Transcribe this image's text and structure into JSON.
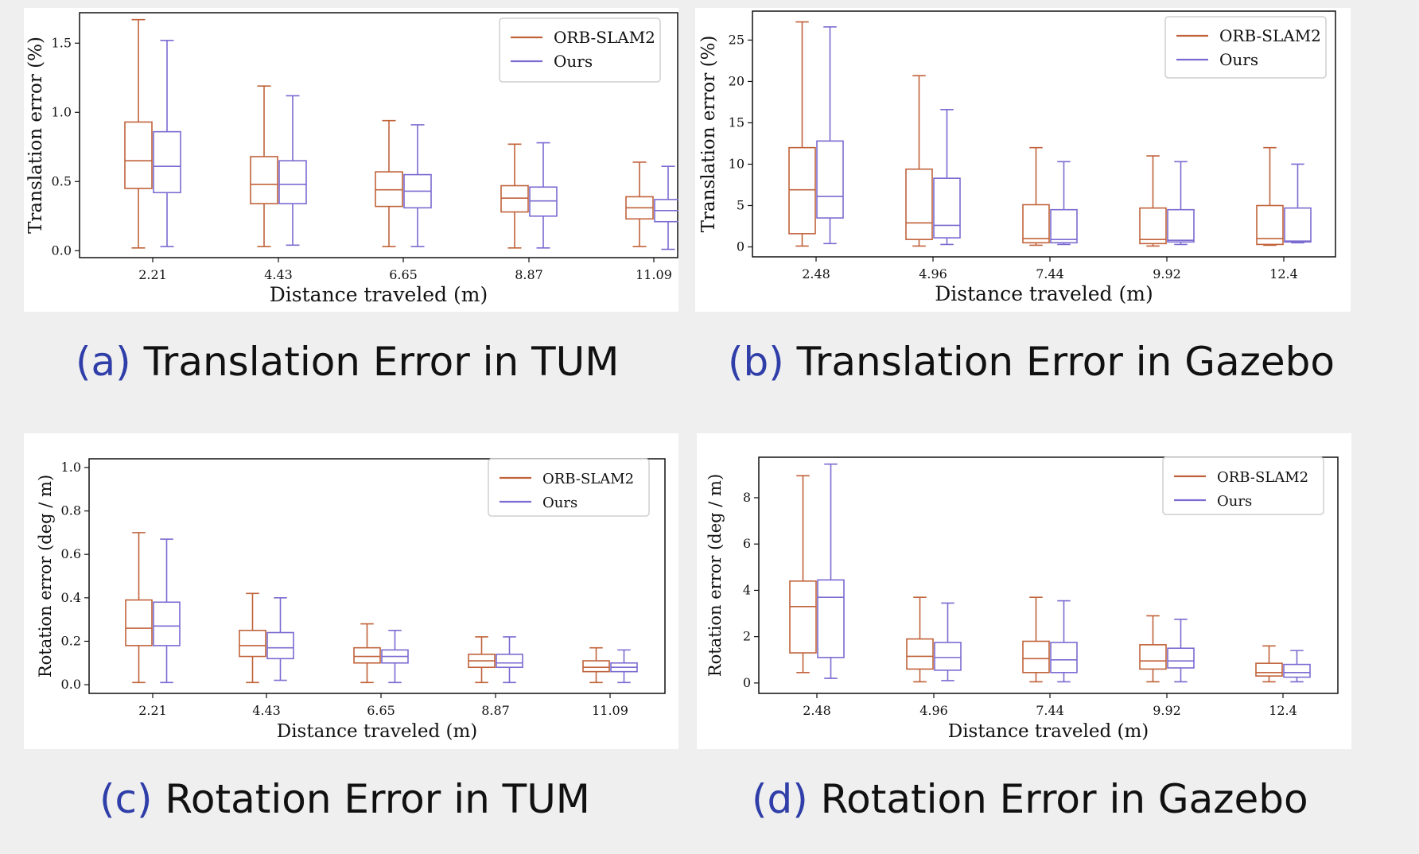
{
  "colors": {
    "orb": "#c0623a",
    "ours": "#7a6bd1",
    "caption_letter": "#2f3ea8"
  },
  "captions": [
    {
      "letter": "(a)",
      "text": "Translation Error in TUM"
    },
    {
      "letter": "(b)",
      "text": "Translation Error in Gazebo"
    },
    {
      "letter": "(c)",
      "text": "Rotation Error in TUM"
    },
    {
      "letter": "(d)",
      "text": "Rotation Error in Gazebo"
    }
  ],
  "chart_data": [
    {
      "type": "box",
      "xlabel": "Distance traveled (m)",
      "ylabel": "Translation error (%)",
      "ylim": [
        -0.05,
        1.72
      ],
      "yticks": [
        0.0,
        0.5,
        1.0,
        1.5
      ],
      "ytick_labels": [
        "0.0",
        "0.5",
        "1.0",
        "1.5"
      ],
      "legend": "top-right",
      "categories": [
        "2.21",
        "4.43",
        "6.65",
        "8.87",
        "11.09"
      ],
      "series": [
        {
          "name": "ORB-SLAM2",
          "boxes": [
            {
              "min": 0.02,
              "q1": 0.45,
              "median": 0.65,
              "q3": 0.93,
              "max": 1.67
            },
            {
              "min": 0.03,
              "q1": 0.34,
              "median": 0.48,
              "q3": 0.68,
              "max": 1.19
            },
            {
              "min": 0.03,
              "q1": 0.32,
              "median": 0.44,
              "q3": 0.57,
              "max": 0.94
            },
            {
              "min": 0.02,
              "q1": 0.28,
              "median": 0.38,
              "q3": 0.47,
              "max": 0.77
            },
            {
              "min": 0.03,
              "q1": 0.23,
              "median": 0.31,
              "q3": 0.39,
              "max": 0.64
            }
          ]
        },
        {
          "name": "Ours",
          "boxes": [
            {
              "min": 0.03,
              "q1": 0.42,
              "median": 0.61,
              "q3": 0.86,
              "max": 1.52
            },
            {
              "min": 0.04,
              "q1": 0.34,
              "median": 0.48,
              "q3": 0.65,
              "max": 1.12
            },
            {
              "min": 0.03,
              "q1": 0.31,
              "median": 0.43,
              "q3": 0.55,
              "max": 0.91
            },
            {
              "min": 0.02,
              "q1": 0.25,
              "median": 0.36,
              "q3": 0.46,
              "max": 0.78
            },
            {
              "min": 0.01,
              "q1": 0.21,
              "median": 0.29,
              "q3": 0.37,
              "max": 0.61
            }
          ]
        }
      ]
    },
    {
      "type": "box",
      "xlabel": "Distance traveled (m)",
      "ylabel": "Translation error (%)",
      "ylim": [
        -1.2,
        28.5
      ],
      "yticks": [
        0,
        5,
        10,
        15,
        20,
        25
      ],
      "ytick_labels": [
        "0",
        "5",
        "10",
        "15",
        "20",
        "25"
      ],
      "legend": "top-right",
      "categories": [
        "2.48",
        "4.96",
        "7.44",
        "9.92",
        "12.4"
      ],
      "series": [
        {
          "name": "ORB-SLAM2",
          "boxes": [
            {
              "min": 0.1,
              "q1": 1.6,
              "median": 6.9,
              "q3": 12.0,
              "max": 27.2
            },
            {
              "min": 0.1,
              "q1": 0.9,
              "median": 2.9,
              "q3": 9.4,
              "max": 20.7
            },
            {
              "min": 0.2,
              "q1": 0.5,
              "median": 1.0,
              "q3": 5.1,
              "max": 12.0
            },
            {
              "min": 0.1,
              "q1": 0.4,
              "median": 0.9,
              "q3": 4.7,
              "max": 11.0
            },
            {
              "min": 0.2,
              "q1": 0.3,
              "median": 1.0,
              "q3": 5.0,
              "max": 12.0
            }
          ]
        },
        {
          "name": "Ours",
          "boxes": [
            {
              "min": 0.4,
              "q1": 3.5,
              "median": 6.1,
              "q3": 12.8,
              "max": 26.6
            },
            {
              "min": 0.3,
              "q1": 1.1,
              "median": 2.6,
              "q3": 8.3,
              "max": 16.6
            },
            {
              "min": 0.3,
              "q1": 0.5,
              "median": 0.9,
              "q3": 4.5,
              "max": 10.3
            },
            {
              "min": 0.3,
              "q1": 0.6,
              "median": 0.8,
              "q3": 4.5,
              "max": 10.3
            },
            {
              "min": 0.5,
              "q1": 0.6,
              "median": 0.7,
              "q3": 4.7,
              "max": 10.0
            }
          ]
        }
      ]
    },
    {
      "type": "box",
      "xlabel": "Distance traveled (m)",
      "ylabel": "Rotation error (deg / m)",
      "ylim": [
        -0.04,
        1.04
      ],
      "yticks": [
        0.0,
        0.2,
        0.4,
        0.6,
        0.8,
        1.0
      ],
      "ytick_labels": [
        "0.0",
        "0.2",
        "0.4",
        "0.6",
        "0.8",
        "1.0"
      ],
      "legend": "top-right",
      "categories": [
        "2.21",
        "4.43",
        "6.65",
        "8.87",
        "11.09"
      ],
      "series": [
        {
          "name": "ORB-SLAM2",
          "boxes": [
            {
              "min": 0.01,
              "q1": 0.18,
              "median": 0.26,
              "q3": 0.39,
              "max": 0.7
            },
            {
              "min": 0.01,
              "q1": 0.13,
              "median": 0.18,
              "q3": 0.25,
              "max": 0.42
            },
            {
              "min": 0.01,
              "q1": 0.1,
              "median": 0.13,
              "q3": 0.17,
              "max": 0.28
            },
            {
              "min": 0.01,
              "q1": 0.08,
              "median": 0.11,
              "q3": 0.14,
              "max": 0.22
            },
            {
              "min": 0.01,
              "q1": 0.06,
              "median": 0.08,
              "q3": 0.11,
              "max": 0.17
            }
          ]
        },
        {
          "name": "Ours",
          "boxes": [
            {
              "min": 0.01,
              "q1": 0.18,
              "median": 0.27,
              "q3": 0.38,
              "max": 0.67
            },
            {
              "min": 0.02,
              "q1": 0.12,
              "median": 0.17,
              "q3": 0.24,
              "max": 0.4
            },
            {
              "min": 0.01,
              "q1": 0.1,
              "median": 0.13,
              "q3": 0.16,
              "max": 0.25
            },
            {
              "min": 0.01,
              "q1": 0.08,
              "median": 0.1,
              "q3": 0.14,
              "max": 0.22
            },
            {
              "min": 0.01,
              "q1": 0.06,
              "median": 0.08,
              "q3": 0.1,
              "max": 0.16
            }
          ]
        }
      ]
    },
    {
      "type": "box",
      "xlabel": "Distance traveled (m)",
      "ylabel": "Rotation error (deg / m)",
      "ylim": [
        -0.45,
        9.75
      ],
      "yticks": [
        0,
        2,
        4,
        6,
        8
      ],
      "ytick_labels": [
        "0",
        "2",
        "4",
        "6",
        "8"
      ],
      "legend": "top-right",
      "categories": [
        "2.48",
        "4.96",
        "7.44",
        "9.92",
        "12.4"
      ],
      "series": [
        {
          "name": "ORB-SLAM2",
          "boxes": [
            {
              "min": 0.45,
              "q1": 1.3,
              "median": 3.3,
              "q3": 4.4,
              "max": 8.95
            },
            {
              "min": 0.05,
              "q1": 0.6,
              "median": 1.15,
              "q3": 1.9,
              "max": 3.7
            },
            {
              "min": 0.05,
              "q1": 0.45,
              "median": 1.05,
              "q3": 1.8,
              "max": 3.7
            },
            {
              "min": 0.05,
              "q1": 0.6,
              "median": 0.95,
              "q3": 1.65,
              "max": 2.9
            },
            {
              "min": 0.05,
              "q1": 0.3,
              "median": 0.45,
              "q3": 0.85,
              "max": 1.6
            }
          ]
        },
        {
          "name": "Ours",
          "boxes": [
            {
              "min": 0.2,
              "q1": 1.1,
              "median": 3.7,
              "q3": 4.45,
              "max": 9.45
            },
            {
              "min": 0.1,
              "q1": 0.55,
              "median": 1.1,
              "q3": 1.75,
              "max": 3.45
            },
            {
              "min": 0.05,
              "q1": 0.45,
              "median": 1.0,
              "q3": 1.75,
              "max": 3.55
            },
            {
              "min": 0.05,
              "q1": 0.65,
              "median": 0.95,
              "q3": 1.5,
              "max": 2.75
            },
            {
              "min": 0.05,
              "q1": 0.25,
              "median": 0.45,
              "q3": 0.8,
              "max": 1.4
            }
          ]
        }
      ]
    }
  ]
}
